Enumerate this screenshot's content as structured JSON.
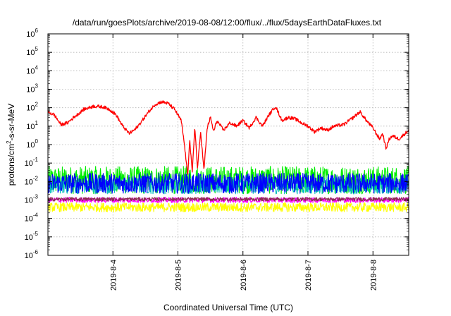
{
  "chart_data": {
    "type": "line",
    "title": "/data/run/goesPlots/archive/2019-08-08/12:00/flux/../flux/5daysEarthDataFluxes.txt",
    "xlabel": "Coordinated Universal Time (UTC)",
    "ylabel": {
      "prefix": "protons/cm",
      "sup": "2",
      "suffix": "-s-sr-MeV"
    },
    "yscale": "log",
    "ylim": [
      1e-06,
      1000000.0
    ],
    "xlim_days": [
      0,
      5.55
    ],
    "grid": true,
    "y_ticks": [
      {
        "value": 1e-06,
        "base": "10",
        "exp": "-6"
      },
      {
        "value": 1e-05,
        "base": "10",
        "exp": "-5"
      },
      {
        "value": 0.0001,
        "base": "10",
        "exp": "-4"
      },
      {
        "value": 0.001,
        "base": "10",
        "exp": "-3"
      },
      {
        "value": 0.01,
        "base": "10",
        "exp": "-2"
      },
      {
        "value": 0.1,
        "base": "10",
        "exp": "-1"
      },
      {
        "value": 1.0,
        "base": "10",
        "exp": "0"
      },
      {
        "value": 10.0,
        "base": "10",
        "exp": "1"
      },
      {
        "value": 100.0,
        "base": "10",
        "exp": "2"
      },
      {
        "value": 1000.0,
        "base": "10",
        "exp": "3"
      },
      {
        "value": 10000.0,
        "base": "10",
        "exp": "4"
      },
      {
        "value": 100000.0,
        "base": "10",
        "exp": "5"
      },
      {
        "value": 1000000.0,
        "base": "10",
        "exp": "6"
      }
    ],
    "x_ticks": [
      {
        "label": "2019-8-4",
        "day": 1
      },
      {
        "label": "2019-8-5",
        "day": 2
      },
      {
        "label": "2019-8-6",
        "day": 3
      },
      {
        "label": "2019-8-7",
        "day": 4
      },
      {
        "label": "2019-8-8",
        "day": 5
      }
    ],
    "series": [
      {
        "color": "#ff0000",
        "noise": 0.18,
        "points": [
          [
            0.0,
            60
          ],
          [
            0.1,
            40
          ],
          [
            0.2,
            12
          ],
          [
            0.3,
            15
          ],
          [
            0.4,
            30
          ],
          [
            0.55,
            80
          ],
          [
            0.7,
            120
          ],
          [
            0.85,
            110
          ],
          [
            0.95,
            80
          ],
          [
            1.05,
            40
          ],
          [
            1.15,
            10
          ],
          [
            1.25,
            4
          ],
          [
            1.35,
            7
          ],
          [
            1.45,
            20
          ],
          [
            1.55,
            60
          ],
          [
            1.65,
            150
          ],
          [
            1.75,
            210
          ],
          [
            1.85,
            170
          ],
          [
            1.95,
            80
          ],
          [
            2.05,
            20
          ],
          [
            2.1,
            1.0
          ],
          [
            2.15,
            0.02
          ],
          [
            2.18,
            2
          ],
          [
            2.22,
            0.03
          ],
          [
            2.26,
            10
          ],
          [
            2.3,
            0.05
          ],
          [
            2.35,
            5
          ],
          [
            2.4,
            0.04
          ],
          [
            2.45,
            8
          ],
          [
            2.5,
            30
          ],
          [
            2.55,
            5
          ],
          [
            2.6,
            20
          ],
          [
            2.7,
            6
          ],
          [
            2.8,
            15
          ],
          [
            2.9,
            10
          ],
          [
            3.0,
            20
          ],
          [
            3.1,
            8
          ],
          [
            3.2,
            30
          ],
          [
            3.3,
            10
          ],
          [
            3.4,
            40
          ],
          [
            3.5,
            120
          ],
          [
            3.6,
            20
          ],
          [
            3.7,
            30
          ],
          [
            3.8,
            25
          ],
          [
            3.9,
            15
          ],
          [
            4.0,
            10
          ],
          [
            4.1,
            5
          ],
          [
            4.2,
            8
          ],
          [
            4.3,
            6
          ],
          [
            4.4,
            10
          ],
          [
            4.55,
            12
          ],
          [
            4.7,
            30
          ],
          [
            4.8,
            60
          ],
          [
            4.9,
            20
          ],
          [
            5.0,
            8
          ],
          [
            5.1,
            2
          ],
          [
            5.15,
            4
          ],
          [
            5.2,
            0.6
          ],
          [
            5.25,
            2
          ],
          [
            5.3,
            3
          ],
          [
            5.4,
            2
          ],
          [
            5.55,
            6
          ]
        ]
      },
      {
        "color": "#00ee00",
        "base": 0.012,
        "noise": 0.75
      },
      {
        "color": "#00bbbb",
        "base": 0.006,
        "noise": 0.45
      },
      {
        "color": "#0000ff",
        "base": 0.008,
        "noise": 0.55
      },
      {
        "color": "#ffff00",
        "base": 0.0004,
        "noise": 0.25
      },
      {
        "color": "#ff00ff",
        "base": 0.001,
        "noise": 0.15
      },
      {
        "color": "#8b3050",
        "base": 0.0011,
        "noise": 0.1
      }
    ]
  }
}
